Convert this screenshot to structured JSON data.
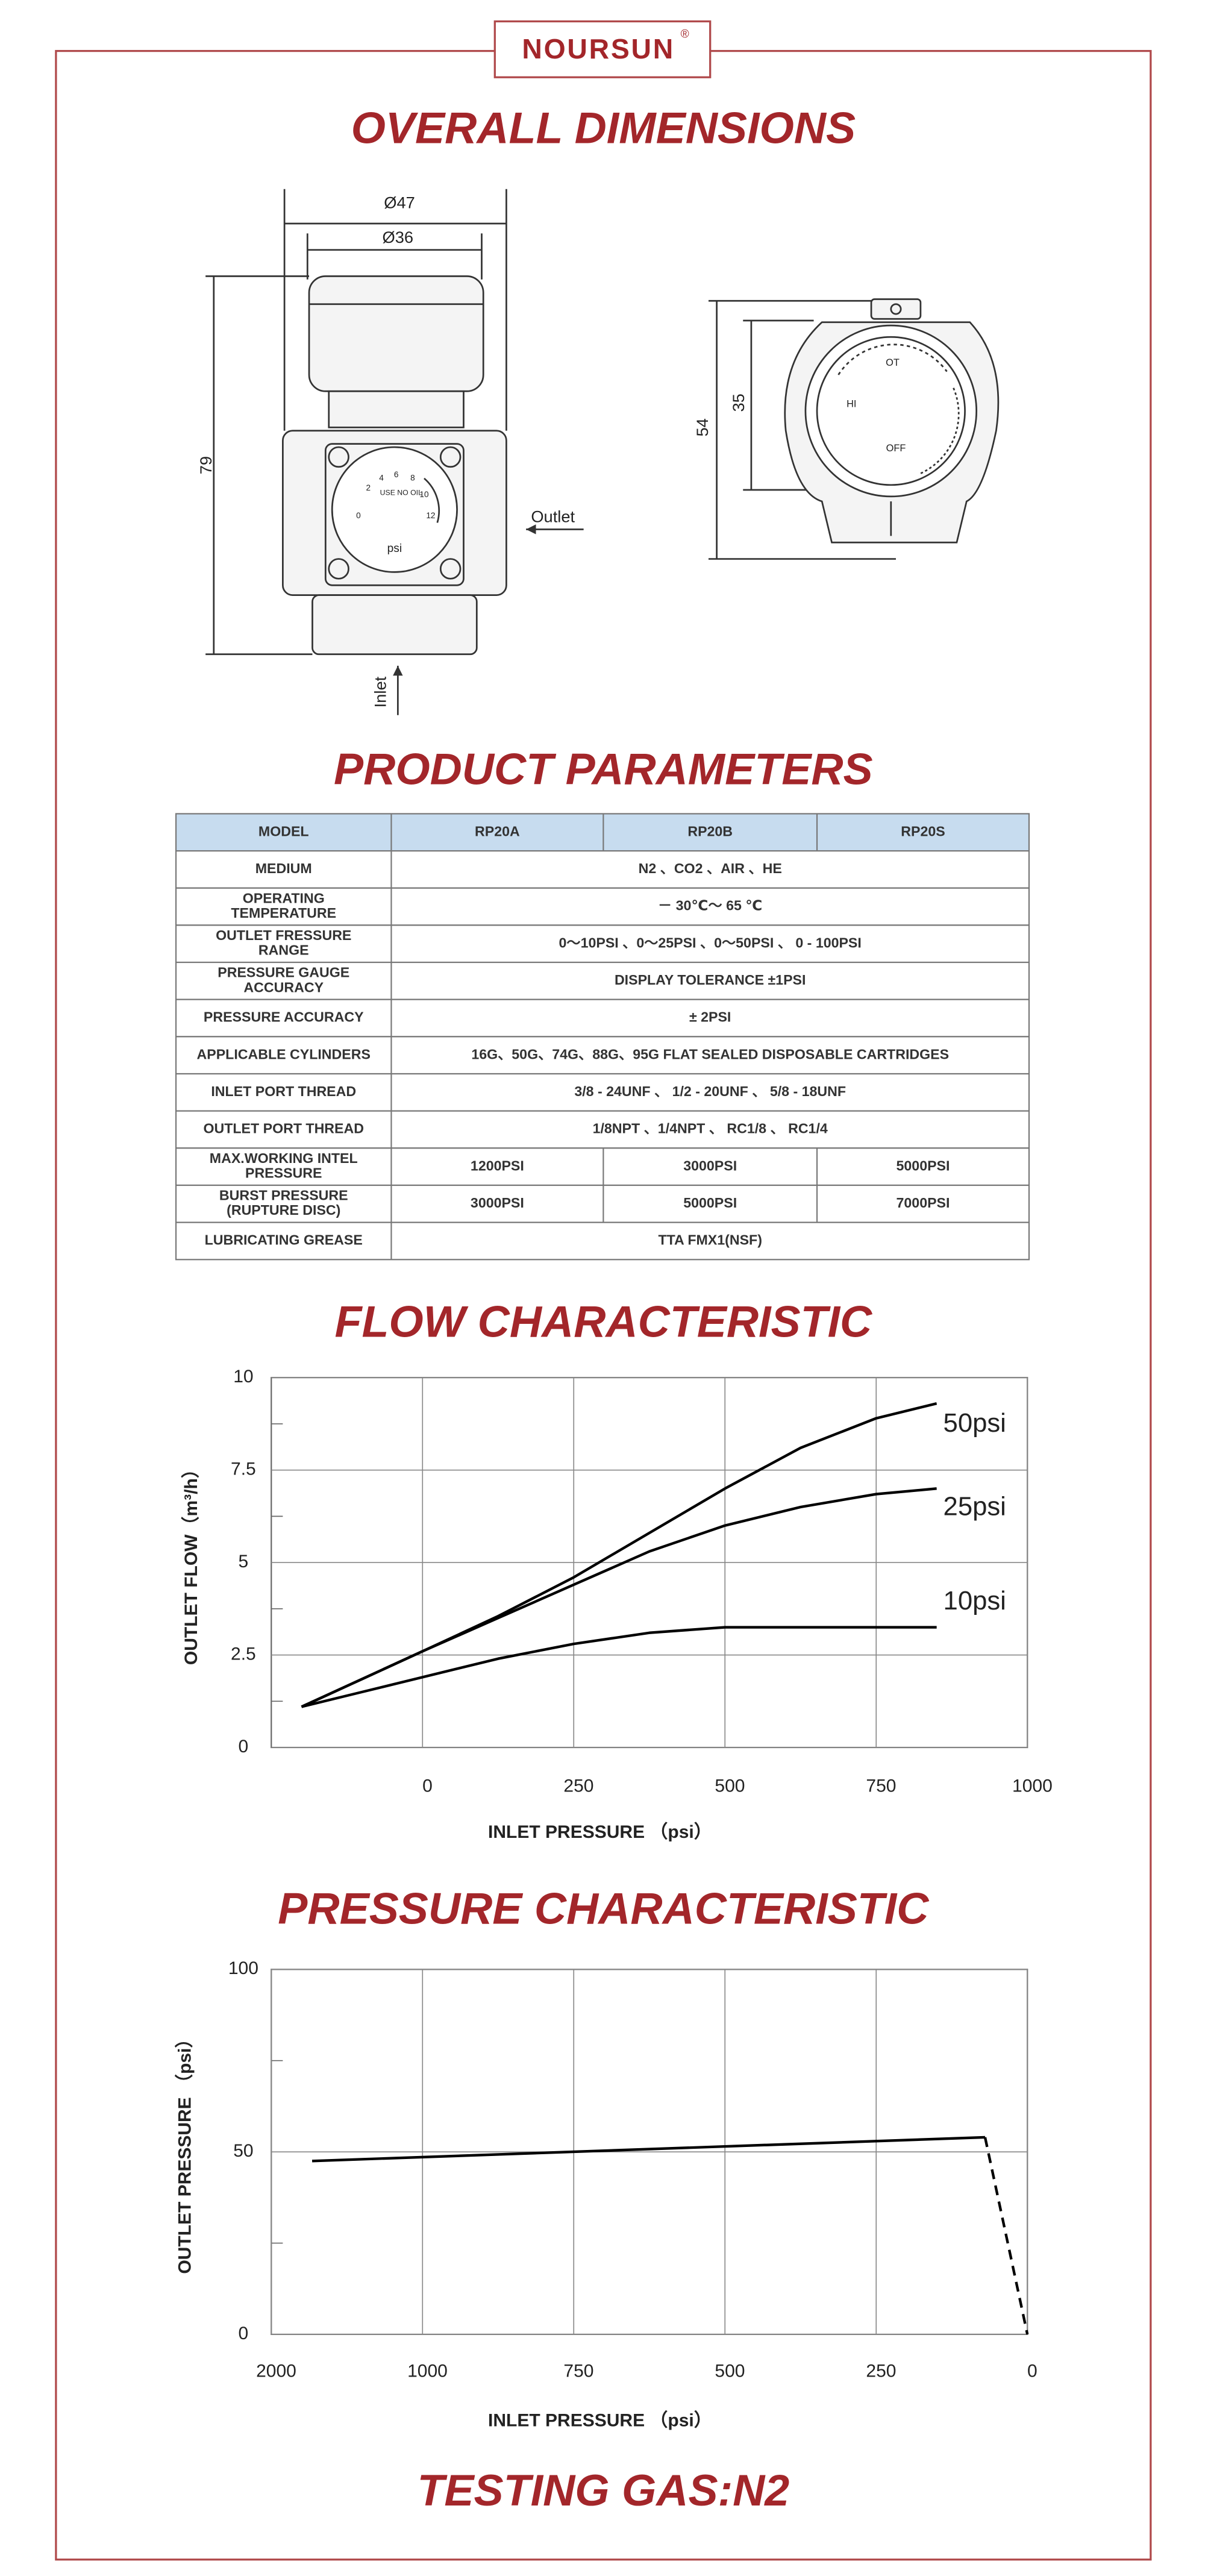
{
  "brand": {
    "name": "NOURSUN",
    "mark": "®"
  },
  "sections": {
    "dimensions": "OVERALL DIMENSIONS",
    "parameters": "PRODUCT PARAMETERS",
    "flow": "FLOW CHARACTERISTIC",
    "pressure": "PRESSURE CHARACTERISTIC"
  },
  "footer": "TESTING GAS:N2",
  "dimensions": {
    "side": {
      "outer_diameter": "Ø47",
      "inner_diameter": "Ø36",
      "height": "79",
      "outlet": "Outlet",
      "inlet": "Inlet",
      "gauge": {
        "scale": [
          "0",
          "2",
          "4",
          "6",
          "8",
          "10",
          "12"
        ],
        "note": "USE NO OIL",
        "unit": "psi"
      }
    },
    "top": {
      "height": "54",
      "inner": "35",
      "labels": [
        "OT",
        "HI",
        "OFF"
      ]
    }
  },
  "table": {
    "header": [
      "MODEL",
      "RP20A",
      "RP20B",
      "RP20S"
    ],
    "rows": [
      [
        "MEDIUM",
        "N2 、CO2 、AIR 、HE"
      ],
      [
        [
          "OPERATING",
          "TEMPERATURE"
        ],
        "－ 30℃～ 65 ℃"
      ],
      [
        [
          "OUTLET FRESSURE",
          "RANGE"
        ],
        "0～10PSI 、0～25PSI 、0～50PSI 、 0 - 100PSI"
      ],
      [
        [
          "PRESSURE GAUGE",
          "ACCURACY"
        ],
        "DISPLAY TOLERANCE ±1PSI"
      ],
      [
        "PRESSURE ACCURACY",
        "± 2PSI"
      ],
      [
        "APPLICABLE CYLINDERS",
        "16G、50G、74G、88G、95G    FLAT SEALED DISPOSABLE CARTRIDGES"
      ],
      [
        "INLET PORT THREAD",
        "3/8 - 24UNF 、 1/2 - 20UNF 、 5/8 - 18UNF"
      ],
      [
        "OUTLET PORT THREAD",
        "1/8NPT 、1/4NPT 、 RC1/8 、 RC1/4"
      ],
      [
        [
          "MAX.WORKING INTEL",
          "PRESSURE"
        ],
        "1200PSI",
        "3000PSI",
        "5000PSI"
      ],
      [
        [
          "BURST PRESSURE",
          "(RUPTURE DISC)"
        ],
        "3000PSI",
        "5000PSI",
        "7000PSI"
      ],
      [
        "LUBRICATING GREASE",
        "TTA  FMX1(NSF)"
      ]
    ]
  },
  "chart_data": [
    {
      "type": "line",
      "x_label": "INLET PRESSURE （psi）",
      "y_label": "OUTLET FLOW（m³/h）",
      "xlim": [
        -250,
        1000
      ],
      "xticks": [
        0,
        250,
        500,
        750,
        1000
      ],
      "ylim": [
        0,
        10
      ],
      "yticks": [
        0,
        2.5,
        5,
        7.5,
        10
      ],
      "minor_yticks": [
        1.25,
        3.75,
        6.25,
        8.75
      ],
      "grid": true,
      "x": [
        -200,
        -100,
        0,
        125,
        250,
        375,
        500,
        625,
        750,
        850
      ],
      "series": [
        {
          "name": "50psi",
          "color": "#000000",
          "values": [
            1.1,
            1.85,
            2.6,
            3.55,
            4.6,
            5.8,
            7.0,
            8.1,
            8.9,
            9.3
          ]
        },
        {
          "name": "25psi",
          "color": "#000000",
          "values": [
            1.1,
            1.85,
            2.6,
            3.5,
            4.4,
            5.3,
            6.0,
            6.5,
            6.85,
            7.0
          ]
        },
        {
          "name": "10psi",
          "color": "#000000",
          "values": [
            1.1,
            1.5,
            1.9,
            2.4,
            2.8,
            3.1,
            3.25,
            3.25,
            3.25,
            3.25
          ]
        }
      ]
    },
    {
      "type": "line",
      "x_label": "INLET PRESSURE （psi）",
      "y_label": "OUTLET PRESSURE （psi）",
      "x_scale": "tick-spaced",
      "xlim": [
        2000,
        0
      ],
      "xticks": [
        2000,
        1000,
        750,
        500,
        250,
        0
      ],
      "ylim": [
        0,
        100
      ],
      "yticks": [
        0,
        50,
        100
      ],
      "minor_yticks": [
        25,
        75
      ],
      "grid": true,
      "series": [
        {
          "color": "#000000",
          "x": [
            1730,
            70
          ],
          "values": [
            47.5,
            54
          ]
        },
        {
          "color": "#000000",
          "x": [
            70,
            0
          ],
          "values": [
            54,
            0
          ],
          "dashed": true
        }
      ]
    }
  ]
}
